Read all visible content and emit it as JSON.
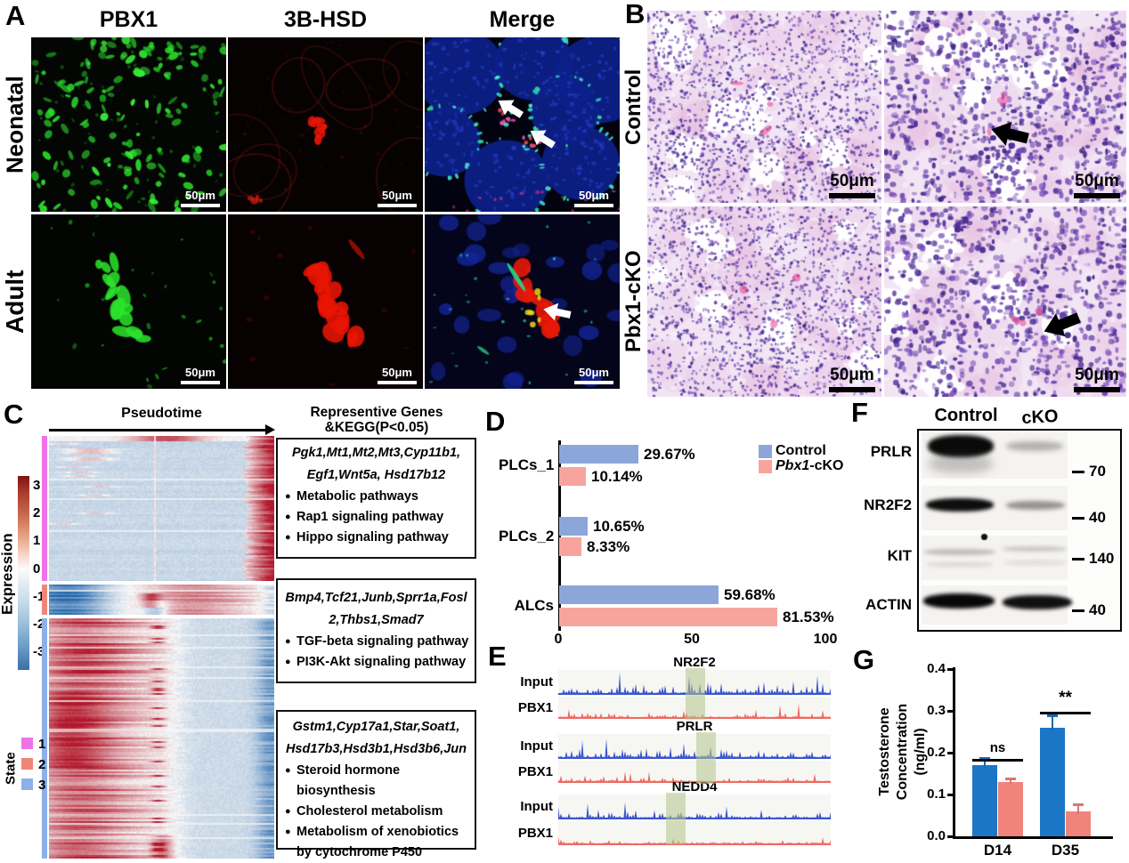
{
  "panels": {
    "A": {
      "label": "A",
      "col_headers": [
        "PBX1",
        "3B-HSD",
        "Merge"
      ],
      "row_headers": [
        "Neonatal",
        "Adult"
      ],
      "scale_bar": "50μm"
    },
    "B": {
      "label": "B",
      "row_headers": [
        "Control",
        "Pbx1-cKO"
      ],
      "scale_bar": "50μm"
    },
    "C": {
      "label": "C",
      "pseudotime_label": "Pseudotime",
      "colorbar_label": "Expression",
      "colorbar_ticks": [
        "3",
        "2",
        "1",
        "0",
        "-1",
        "-2",
        "-3"
      ],
      "state_label": "State",
      "states": [
        {
          "label": "1",
          "color": "#ee72e8"
        },
        {
          "label": "2",
          "color": "#ef8577"
        },
        {
          "label": "3",
          "color": "#8cb0ea"
        }
      ],
      "annotation_title": [
        "Representive Genes",
        "&KEGG(P<0.05)"
      ],
      "boxes": [
        {
          "genes": [
            "Pgk1,Mt1,Mt2,Mt3,Cyp11b1,",
            "Egf1,Wnt5a, Hsd17b12"
          ],
          "pathways": [
            "Metabolic pathways",
            "Rap1 signaling pathway",
            "Hippo signaling pathway"
          ]
        },
        {
          "genes": [
            "Bmp4,Tcf21,Junb,Sprr1a,Fosl",
            "2,Thbs1,Smad7"
          ],
          "pathways": [
            "TGF-beta signaling pathway",
            "PI3K-Akt signaling pathway"
          ]
        },
        {
          "genes": [
            "Gstm1,Cyp17a1,Star,Soat1,",
            "Hsd17b3,Hsd3b1,Hsd3b6,Jun"
          ],
          "pathways": [
            "Steroid hormone biosynthesis",
            "Cholesterol metabolism",
            "Metabolism of xenobiotics by cytochrome P450"
          ]
        }
      ]
    },
    "D": {
      "label": "D"
    },
    "E": {
      "label": "E",
      "track_labels": [
        "Input",
        "PBX1"
      ],
      "groups": [
        {
          "gene": "NR2F2"
        },
        {
          "gene": "PRLR"
        },
        {
          "gene": "NEDD4"
        }
      ]
    },
    "F": {
      "label": "F",
      "lane_headers": [
        "Control",
        "cKO"
      ],
      "rows": [
        {
          "protein": "PRLR",
          "mw": "70"
        },
        {
          "protein": "NR2F2",
          "mw": "40"
        },
        {
          "protein": "KIT",
          "mw": "140"
        },
        {
          "protein": "ACTIN",
          "mw": "40"
        }
      ]
    },
    "G": {
      "label": "G"
    }
  },
  "chart_data": [
    {
      "id": "D",
      "type": "bar",
      "orientation": "horizontal",
      "categories": [
        "PLCs_1",
        "PLCs_2",
        "ALCs"
      ],
      "series": [
        {
          "name": "Control",
          "color": "#8ca6da",
          "values": [
            29.67,
            10.65,
            59.68
          ],
          "value_labels": [
            "29.67%",
            "10.65%",
            "59.68%"
          ]
        },
        {
          "name": "Pbx1-cKO",
          "name_italic_prefix": "Pbx1",
          "name_rest": "-cKO",
          "color": "#f7a49e",
          "values": [
            10.14,
            8.33,
            81.53
          ],
          "value_labels": [
            "10.14%",
            "8.33%",
            "81.53%"
          ]
        }
      ],
      "xlim": [
        0,
        100
      ],
      "xticks": [
        "0",
        "50",
        "100"
      ],
      "legend_position": "top-right"
    },
    {
      "id": "G",
      "type": "bar",
      "orientation": "vertical",
      "ylabel": [
        "Testosterone Concentration",
        "(ng/ml)"
      ],
      "categories": [
        "D14",
        "D35"
      ],
      "series": [
        {
          "name": "Control",
          "color": "#1b76c5",
          "values": [
            0.17,
            0.26
          ],
          "errors": [
            0.018,
            0.03
          ]
        },
        {
          "name": "Pbx1-cKO",
          "color": "#f0837c",
          "values": [
            0.13,
            0.06
          ],
          "errors": [
            0.008,
            0.016
          ]
        }
      ],
      "ylim": [
        0,
        0.4
      ],
      "yticks": [
        "0.0",
        "0.1",
        "0.2",
        "0.3",
        "0.4"
      ],
      "significance": [
        {
          "category": "D14",
          "label": "ns"
        },
        {
          "category": "D35",
          "label": "**"
        }
      ]
    }
  ]
}
